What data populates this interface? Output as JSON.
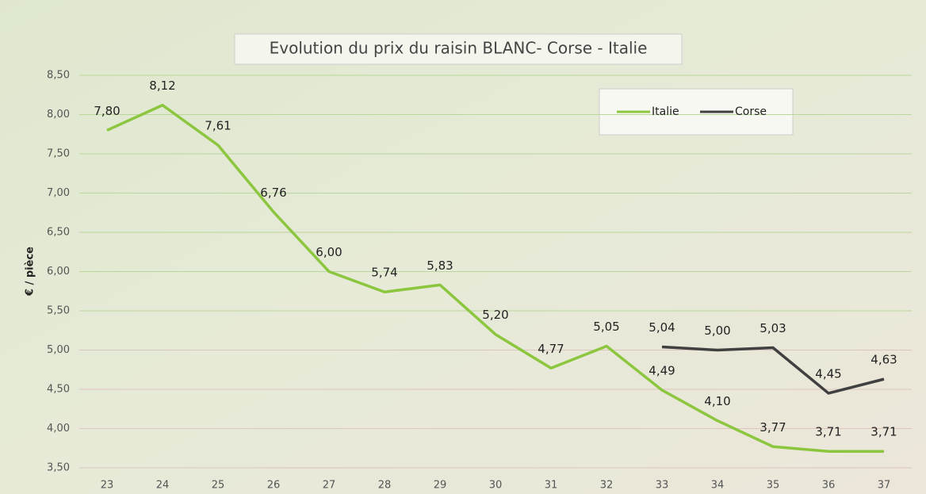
{
  "chart_data": {
    "type": "line",
    "title": "Evolution du prix du raisin BLANC- Corse - Italie",
    "y_label": "€ / pièce",
    "categories": [
      "23",
      "24",
      "25",
      "26",
      "27",
      "28",
      "29",
      "30",
      "31",
      "32",
      "33",
      "34",
      "35",
      "36",
      "37"
    ],
    "series": [
      {
        "name": "Italie",
        "color": "#8cc63f",
        "values": [
          7.8,
          8.12,
          7.61,
          6.76,
          6.0,
          5.74,
          5.83,
          5.2,
          4.77,
          5.05,
          4.49,
          4.1,
          3.77,
          3.71,
          3.71
        ],
        "value_labels": [
          "7,80",
          "8,12",
          "7,61",
          "6,76",
          "6,00",
          "5,74",
          "5,83",
          "5,20",
          "4,77",
          "5,05",
          "4,49",
          "4,10",
          "3,77",
          "3,71",
          "3,71"
        ]
      },
      {
        "name": "Corse",
        "color": "#404040",
        "values": [
          null,
          null,
          null,
          null,
          null,
          null,
          null,
          null,
          null,
          null,
          5.04,
          5.0,
          5.03,
          4.45,
          4.63
        ],
        "value_labels": [
          null,
          null,
          null,
          null,
          null,
          null,
          null,
          null,
          null,
          null,
          "5,04",
          "5,00",
          "5,03",
          "4,45",
          "4,63"
        ]
      }
    ],
    "ylim": [
      3.5,
      8.5
    ],
    "yticks": [
      {
        "value": 3.5,
        "label": "3,50"
      },
      {
        "value": 4,
        "label": "4,00"
      },
      {
        "value": 4.5,
        "label": "4,50"
      },
      {
        "value": 5,
        "label": "5,00"
      },
      {
        "value": 5.5,
        "label": "5,50"
      },
      {
        "value": 6,
        "label": "6,00"
      },
      {
        "value": 6.5,
        "label": "6,50"
      },
      {
        "value": 7,
        "label": "7,00"
      },
      {
        "value": 7.5,
        "label": "7,50"
      },
      {
        "value": 8,
        "label": "8,00"
      },
      {
        "value": 8.5,
        "label": "8,50"
      }
    ],
    "grid": true,
    "legend": "top-right"
  }
}
